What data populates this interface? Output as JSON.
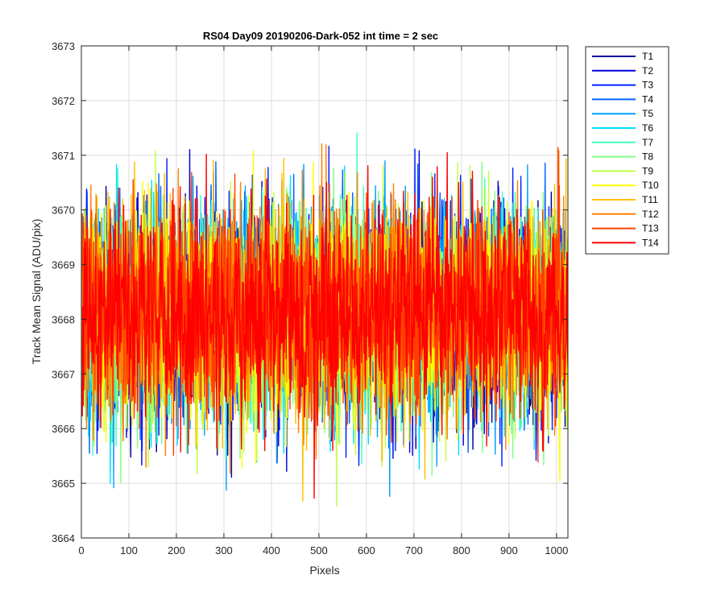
{
  "chart_data": {
    "type": "line",
    "title": "RS04 Day09 20190206-Dark-052 int time = 2 sec",
    "xlabel": "Pixels",
    "ylabel": "Track Mean Signal (ADU/pix)",
    "xlim": [
      0,
      1024
    ],
    "ylim": [
      3664,
      3673
    ],
    "xticks": [
      0,
      100,
      200,
      300,
      400,
      500,
      600,
      700,
      800,
      900,
      1000
    ],
    "yticks": [
      3664,
      3665,
      3666,
      3667,
      3668,
      3669,
      3670,
      3671,
      3672,
      3673
    ],
    "grid": true,
    "legend_position": "outside-top-right",
    "n_points_per_series": 1024,
    "series": [
      {
        "name": "T1",
        "color": "#00009f",
        "mean": 3668.1,
        "std": 0.95
      },
      {
        "name": "T2",
        "color": "#0000df",
        "mean": 3668.1,
        "std": 0.95
      },
      {
        "name": "T3",
        "color": "#0020ff",
        "mean": 3668.1,
        "std": 0.95
      },
      {
        "name": "T4",
        "color": "#0060ff",
        "mean": 3668.1,
        "std": 0.95
      },
      {
        "name": "T5",
        "color": "#00a0ff",
        "mean": 3668.1,
        "std": 0.95
      },
      {
        "name": "T6",
        "color": "#00e0ff",
        "mean": 3668.1,
        "std": 0.95
      },
      {
        "name": "T7",
        "color": "#40ffbf",
        "mean": 3668.1,
        "std": 0.95
      },
      {
        "name": "T8",
        "color": "#80ff80",
        "mean": 3668.1,
        "std": 0.95
      },
      {
        "name": "T9",
        "color": "#bfff40",
        "mean": 3668.1,
        "std": 0.95
      },
      {
        "name": "T10",
        "color": "#ffff00",
        "mean": 3668.1,
        "std": 0.95
      },
      {
        "name": "T11",
        "color": "#ffbf00",
        "mean": 3668.1,
        "std": 0.95
      },
      {
        "name": "T12",
        "color": "#ff8000",
        "mean": 3668.1,
        "std": 0.95
      },
      {
        "name": "T13",
        "color": "#ff4000",
        "mean": 3668.1,
        "std": 0.95
      },
      {
        "name": "T14",
        "color": "#ff0000",
        "mean": 3668.1,
        "std": 0.95
      }
    ]
  }
}
